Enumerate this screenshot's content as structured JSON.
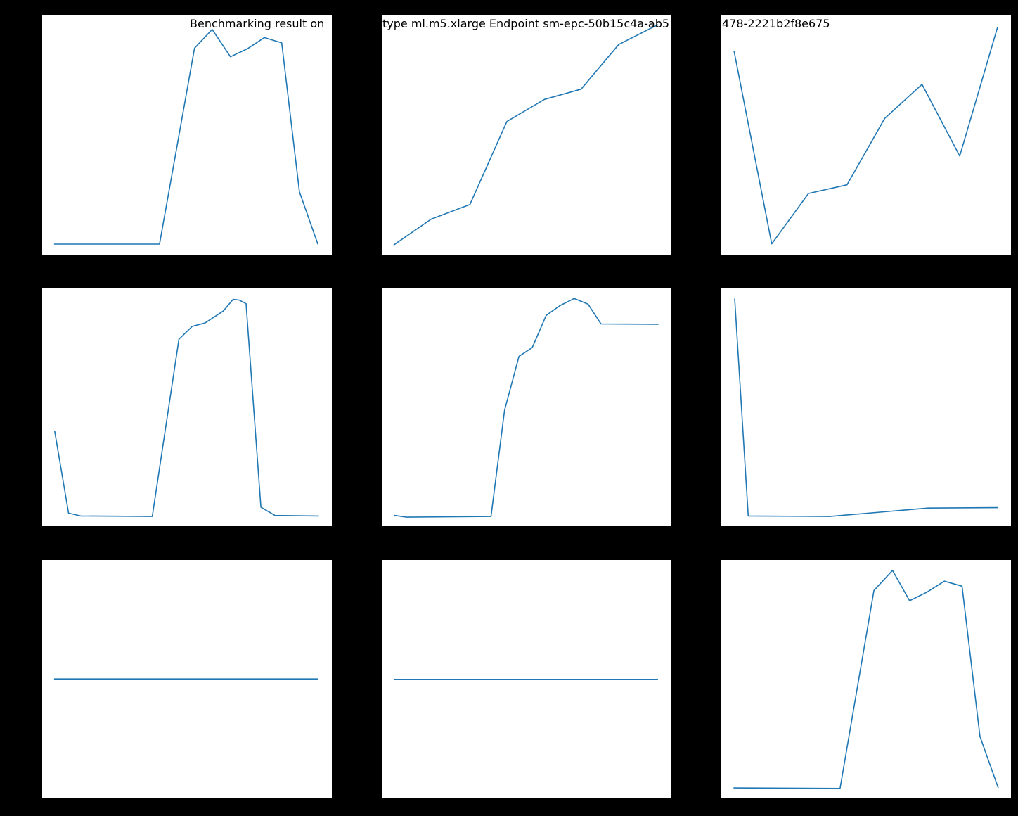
{
  "figure": {
    "background": "#000000",
    "subplot_background": "#ffffff",
    "text_color": "#000000"
  },
  "title_fragments": [
    {
      "text": "Benchmarking result on"
    },
    {
      "text": "type ml.m5.xlarge Endpoint sm-epc-50b15c4a-ab5"
    },
    {
      "text": "478-2221b2f8e675"
    }
  ],
  "chart_data": {
    "type": "line",
    "title": "Benchmarking result on ... type ml.m5.xlarge Endpoint sm-epc-50b15c4a-ab5 ... 478-2221b2f8e675",
    "note": "3x3 grid of matplotlib line subplots on a black figure background; axis tick labels and per-subplot titles are black-on-black and not visible, so point values are normalized fractions of each subplot's axes (x: 0=left..1=right, y: 0=bottom..1=top)",
    "line_color": "#1f77b4",
    "grid": {
      "rows": 3,
      "cols": 3
    },
    "legend": "none",
    "subplots": [
      {
        "row": 0,
        "col": 0,
        "name": "top-left",
        "shape": "flat baseline then sharp hump with double peak then sharp drop",
        "x": [
          0.041,
          0.405,
          0.526,
          0.587,
          0.65,
          0.708,
          0.767,
          0.827,
          0.888,
          0.952
        ],
        "y": [
          0.047,
          0.047,
          0.864,
          0.942,
          0.828,
          0.861,
          0.908,
          0.886,
          0.265,
          0.046
        ]
      },
      {
        "row": 0,
        "col": 1,
        "name": "top-middle",
        "shape": "monotonically increasing stepped curve",
        "x": [
          0.041,
          0.171,
          0.305,
          0.433,
          0.563,
          0.69,
          0.82,
          0.956
        ],
        "y": [
          0.043,
          0.151,
          0.212,
          0.558,
          0.65,
          0.693,
          0.879,
          0.962
        ]
      },
      {
        "row": 0,
        "col": 2,
        "name": "top-right",
        "shape": "high start, deep dip, rise to local peak, dip, sharp rise at end",
        "x": [
          0.044,
          0.174,
          0.301,
          0.434,
          0.564,
          0.693,
          0.823,
          0.954
        ],
        "y": [
          0.852,
          0.048,
          0.258,
          0.294,
          0.571,
          0.713,
          0.414,
          0.952
        ]
      },
      {
        "row": 1,
        "col": 0,
        "name": "middle-left",
        "shape": "mid start dropping to baseline, flat, tall hump with wiggly top, drop back to baseline",
        "x": [
          0.043,
          0.091,
          0.133,
          0.38,
          0.472,
          0.518,
          0.562,
          0.625,
          0.659,
          0.68,
          0.704,
          0.755,
          0.804,
          0.955
        ],
        "y": [
          0.4,
          0.055,
          0.043,
          0.041,
          0.784,
          0.838,
          0.852,
          0.902,
          0.951,
          0.948,
          0.933,
          0.08,
          0.045,
          0.043
        ]
      },
      {
        "row": 1,
        "col": 1,
        "name": "middle-middle",
        "shape": "flat baseline, steep rise with shoulder, peak, slight decline to high plateau",
        "x": [
          0.041,
          0.086,
          0.378,
          0.425,
          0.475,
          0.521,
          0.569,
          0.617,
          0.666,
          0.714,
          0.759,
          0.958
        ],
        "y": [
          0.046,
          0.038,
          0.041,
          0.486,
          0.712,
          0.749,
          0.884,
          0.925,
          0.955,
          0.931,
          0.848,
          0.847
        ]
      },
      {
        "row": 1,
        "col": 2,
        "name": "middle-right",
        "shape": "very high start, vertical drop to baseline, nearly flat with slight rise",
        "x": [
          0.046,
          0.093,
          0.374,
          0.714,
          0.955
        ],
        "y": [
          0.955,
          0.043,
          0.041,
          0.076,
          0.078
        ]
      },
      {
        "row": 2,
        "col": 0,
        "name": "bottom-left",
        "shape": "constant horizontal line at mid height",
        "x": [
          0.041,
          0.954
        ],
        "y": [
          0.501,
          0.501
        ]
      },
      {
        "row": 2,
        "col": 1,
        "name": "bottom-middle",
        "shape": "constant horizontal line at mid height",
        "x": [
          0.041,
          0.956
        ],
        "y": [
          0.499,
          0.499
        ]
      },
      {
        "row": 2,
        "col": 2,
        "name": "bottom-right",
        "shape": "flat baseline then sharp hump with double peak then sharp drop",
        "x": [
          0.042,
          0.41,
          0.527,
          0.591,
          0.65,
          0.71,
          0.77,
          0.831,
          0.893,
          0.956
        ],
        "y": [
          0.044,
          0.042,
          0.872,
          0.956,
          0.829,
          0.865,
          0.911,
          0.89,
          0.26,
          0.044
        ]
      }
    ]
  }
}
